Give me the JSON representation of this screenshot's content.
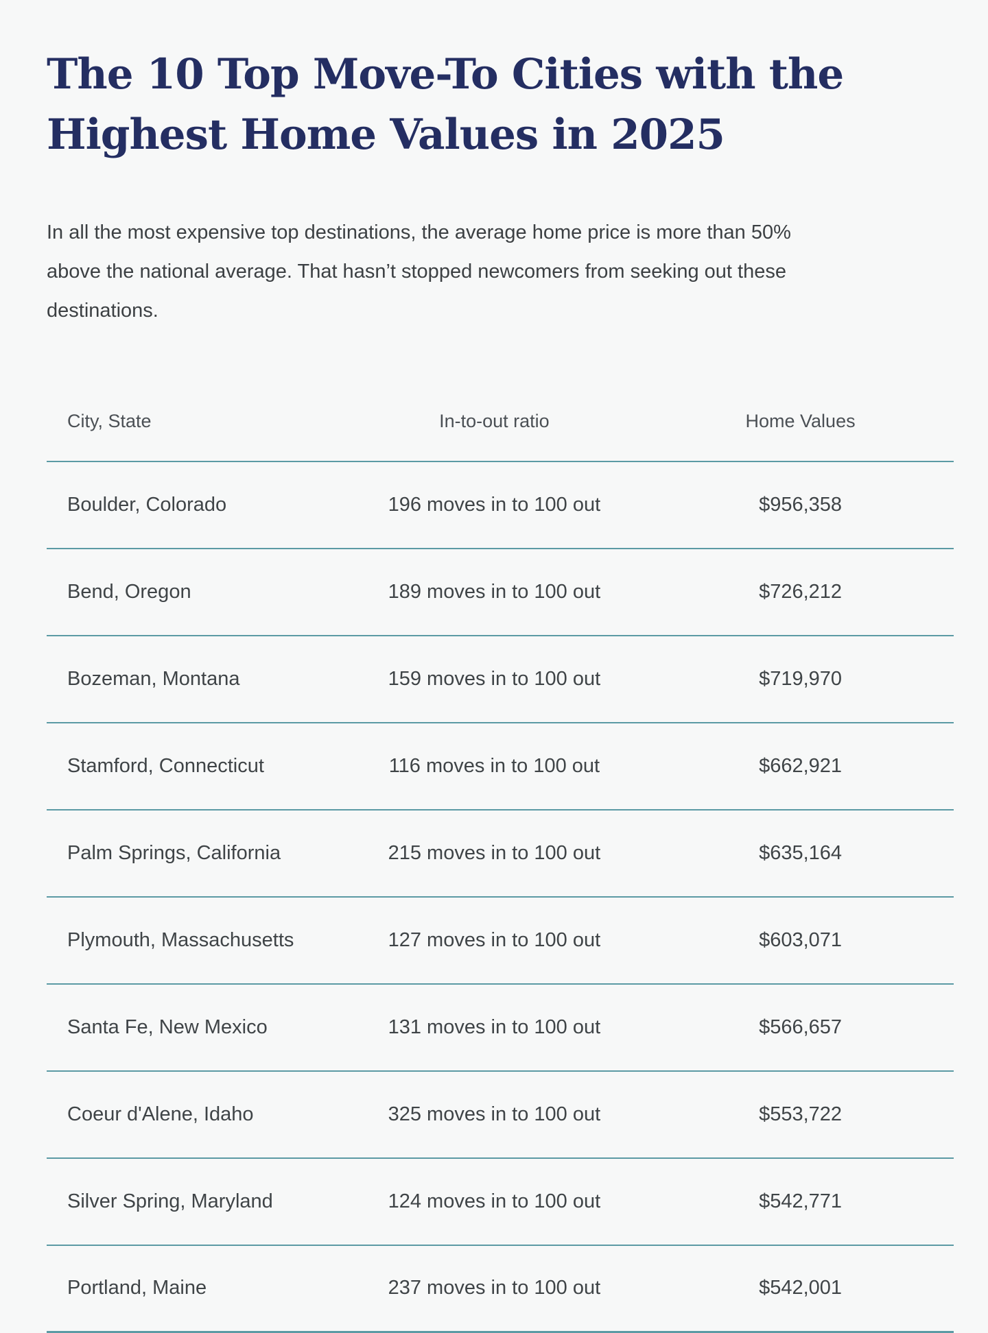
{
  "page": {
    "title_lines": [
      "The 10 Top Move-To Cities with the",
      "Highest Home Values in 2025"
    ],
    "intro": "In all the most expensive top destinations, the average home price is more than 50% above the national average. That hasn’t stopped newcomers from seeking out these destinations."
  },
  "table": {
    "headers": {
      "city": "City, State",
      "ratio": "In-to-out ratio",
      "value": "Home Values"
    },
    "rows": [
      {
        "city": "Boulder, Colorado",
        "ratio": "196 moves in to 100 out",
        "value": "$956,358"
      },
      {
        "city": "Bend, Oregon",
        "ratio": "189 moves in to 100 out",
        "value": "$726,212"
      },
      {
        "city": "Bozeman, Montana",
        "ratio": "159 moves in to 100 out",
        "value": "$719,970"
      },
      {
        "city": "Stamford, Connecticut",
        "ratio": "116 moves in to 100 out",
        "value": "$662,921"
      },
      {
        "city": "Palm Springs, California",
        "ratio": "215 moves in to 100 out",
        "value": "$635,164"
      },
      {
        "city": "Plymouth, Massachusetts",
        "ratio": "127 moves in to 100 out",
        "value": "$603,071"
      },
      {
        "city": "Santa Fe, New Mexico",
        "ratio": "131 moves in to 100 out",
        "value": "$566,657"
      },
      {
        "city": "Coeur d'Alene, Idaho",
        "ratio": "325 moves in to 100 out",
        "value": "$553,722"
      },
      {
        "city": "Silver Spring, Maryland",
        "ratio": "124 moves in to 100 out",
        "value": "$542,771"
      },
      {
        "city": "Portland, Maine",
        "ratio": "237 moves in to 100 out",
        "value": "$542,001"
      }
    ]
  },
  "colors": {
    "title": "#242e62",
    "divider": "#5b9aa4",
    "background": "#f7f8f8",
    "body_text": "#3f4447",
    "header_text": "#4b5055"
  }
}
